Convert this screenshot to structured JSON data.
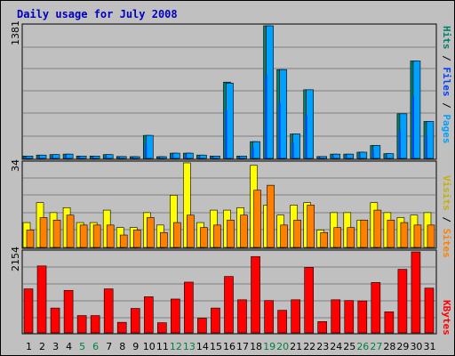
{
  "title": "Daily usage for July 2008",
  "colors": {
    "title": "#0000c0",
    "pages": "#00a0ff",
    "files": "#0040ff",
    "hits": "#00806a",
    "visits": "#ffff00",
    "sites": "#ff8000",
    "kbytes": "#ff0000",
    "weekend_label": "#008040"
  },
  "panels": {
    "top": {
      "ymax_label": "1381"
    },
    "middle": {
      "ymax_label": "34"
    },
    "bottom": {
      "ymax_label": "2154"
    }
  },
  "right_labels": {
    "top": [
      {
        "text": "Hits",
        "color": "#00806a"
      },
      {
        "text": " / ",
        "color": "#000000"
      },
      {
        "text": "Files",
        "color": "#0040ff"
      },
      {
        "text": " / ",
        "color": "#000000"
      },
      {
        "text": "Pages",
        "color": "#00a0ff"
      }
    ],
    "middle": [
      {
        "text": "Visits",
        "color": "#c8b000"
      },
      {
        "text": " / ",
        "color": "#000000"
      },
      {
        "text": "Sites",
        "color": "#ff8000"
      }
    ],
    "bottom": [
      {
        "text": "KBytes",
        "color": "#ff0000"
      }
    ]
  },
  "chart_data": {
    "type": "bar",
    "title": "Daily usage for July 2008",
    "categories": [
      "1",
      "2",
      "3",
      "4",
      "5",
      "6",
      "7",
      "8",
      "9",
      "10",
      "11",
      "12",
      "13",
      "14",
      "15",
      "16",
      "17",
      "18",
      "19",
      "20",
      "21",
      "22",
      "23",
      "24",
      "25",
      "26",
      "27",
      "28",
      "29",
      "30",
      "31"
    ],
    "weekend_days": [
      "5",
      "6",
      "12",
      "13",
      "19",
      "20",
      "26",
      "27"
    ],
    "panels": [
      {
        "name": "hits-files-pages",
        "ymax": 1381,
        "series": [
          {
            "name": "Hits",
            "values": [
              25,
              35,
              40,
              45,
              25,
              25,
              40,
              20,
              15,
              240,
              15,
              55,
              55,
              35,
              25,
              795,
              25,
              175,
              1381,
              925,
              255,
              715,
              20,
              45,
              45,
              65,
              135,
              50,
              465,
              1015,
              385
            ]
          },
          {
            "name": "Files",
            "values": [
              15,
              20,
              25,
              30,
              15,
              15,
              25,
              10,
              8,
              150,
              10,
              35,
              35,
              20,
              15,
              500,
              15,
              110,
              870,
              580,
              160,
              450,
              12,
              28,
              28,
              40,
              85,
              30,
              290,
              640,
              240
            ]
          },
          {
            "name": "Pages",
            "values": [
              25,
              35,
              40,
              45,
              25,
              25,
              40,
              20,
              15,
              240,
              15,
              55,
              55,
              35,
              25,
              785,
              25,
              175,
              1381,
              925,
              255,
              715,
              20,
              45,
              45,
              65,
              135,
              50,
              465,
              1015,
              385
            ]
          }
        ]
      },
      {
        "name": "visits-sites",
        "ymax": 34,
        "series": [
          {
            "name": "Visits",
            "values": [
              10,
              18,
              14,
              16,
              10,
              10,
              15,
              8,
              8,
              14,
              9,
              21,
              34,
              10,
              15,
              15,
              16,
              33,
              17,
              13,
              17,
              18,
              7,
              14,
              14,
              11,
              18,
              14,
              12,
              13,
              14
            ]
          },
          {
            "name": "Sites",
            "values": [
              7,
              12,
              11,
              13,
              9,
              9,
              9,
              5,
              7,
              12,
              6,
              10,
              13,
              8,
              9,
              11,
              13,
              23,
              25,
              9,
              11,
              17,
              6,
              8,
              8,
              11,
              15,
              11,
              10,
              9,
              9
            ]
          }
        ]
      },
      {
        "name": "kbytes",
        "ymax": 2154,
        "series": [
          {
            "name": "KBytes",
            "values": [
              1170,
              1780,
              660,
              1130,
              460,
              460,
              1170,
              280,
              650,
              960,
              270,
              900,
              1350,
              390,
              660,
              1500,
              880,
              2030,
              860,
              600,
              880,
              1740,
              300,
              880,
              860,
              850,
              1340,
              560,
              1690,
              2154,
              1190
            ]
          }
        ]
      }
    ]
  }
}
